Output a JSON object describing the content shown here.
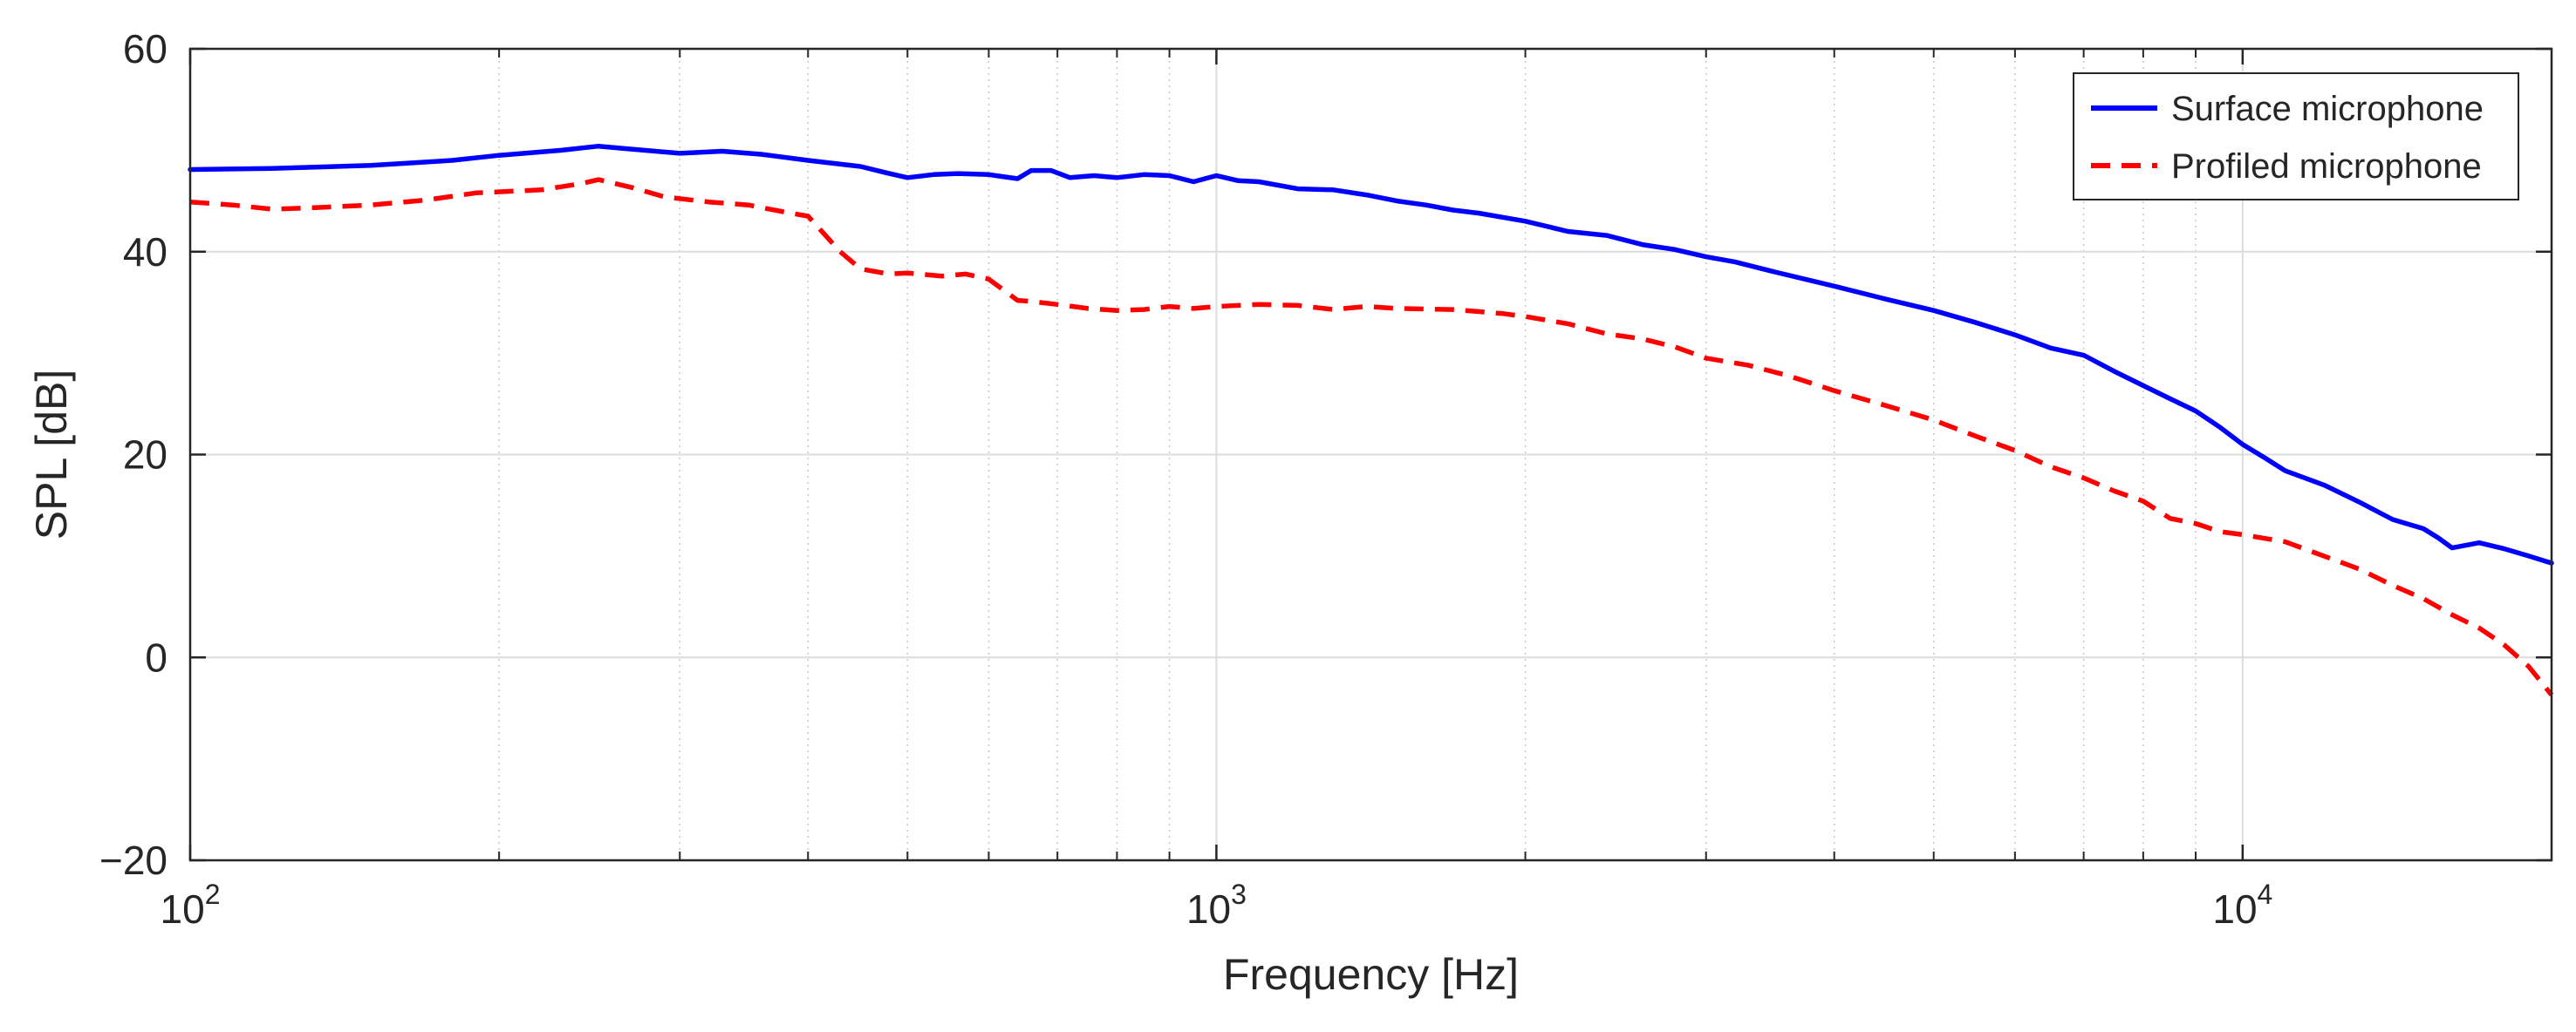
{
  "chart_data": {
    "type": "line",
    "title": "",
    "xlabel": "Frequency [Hz]",
    "ylabel": "SPL [dB]",
    "xscale": "log",
    "xlim": [
      100,
      20000
    ],
    "ylim": [
      -20,
      60
    ],
    "grid": true,
    "legend_position": "top-right",
    "x_ticks": [
      {
        "value": 100,
        "base": "10",
        "exp": "2"
      },
      {
        "value": 1000,
        "base": "10",
        "exp": "3"
      },
      {
        "value": 10000,
        "base": "10",
        "exp": "4"
      }
    ],
    "y_ticks": [
      {
        "value": -20,
        "label": "−20"
      },
      {
        "value": 0,
        "label": "0"
      },
      {
        "value": 20,
        "label": "20"
      },
      {
        "value": 40,
        "label": "40"
      },
      {
        "value": 60,
        "label": "60"
      }
    ],
    "series": [
      {
        "name": "Surface microphone",
        "color": "#0000ff",
        "dash": "solid",
        "points": [
          [
            100,
            48.1
          ],
          [
            120,
            48.2
          ],
          [
            150,
            48.5
          ],
          [
            180,
            49.0
          ],
          [
            200,
            49.5
          ],
          [
            230,
            50.0
          ],
          [
            250,
            50.4
          ],
          [
            270,
            50.1
          ],
          [
            300,
            49.7
          ],
          [
            330,
            49.9
          ],
          [
            360,
            49.6
          ],
          [
            400,
            49.0
          ],
          [
            450,
            48.4
          ],
          [
            480,
            47.7
          ],
          [
            500,
            47.3
          ],
          [
            530,
            47.6
          ],
          [
            560,
            47.7
          ],
          [
            600,
            47.6
          ],
          [
            640,
            47.2
          ],
          [
            660,
            48.0
          ],
          [
            690,
            48.0
          ],
          [
            720,
            47.3
          ],
          [
            760,
            47.5
          ],
          [
            800,
            47.3
          ],
          [
            850,
            47.6
          ],
          [
            900,
            47.5
          ],
          [
            950,
            46.9
          ],
          [
            1000,
            47.5
          ],
          [
            1050,
            47.0
          ],
          [
            1100,
            46.9
          ],
          [
            1200,
            46.2
          ],
          [
            1300,
            46.1
          ],
          [
            1400,
            45.6
          ],
          [
            1500,
            45.0
          ],
          [
            1600,
            44.6
          ],
          [
            1700,
            44.1
          ],
          [
            1800,
            43.8
          ],
          [
            2000,
            43.0
          ],
          [
            2200,
            42.0
          ],
          [
            2400,
            41.6
          ],
          [
            2600,
            40.7
          ],
          [
            2800,
            40.2
          ],
          [
            3000,
            39.5
          ],
          [
            3200,
            39.0
          ],
          [
            3500,
            38.0
          ],
          [
            4000,
            36.6
          ],
          [
            4500,
            35.3
          ],
          [
            5000,
            34.2
          ],
          [
            5500,
            33.0
          ],
          [
            6000,
            31.8
          ],
          [
            6500,
            30.5
          ],
          [
            7000,
            29.8
          ],
          [
            7500,
            28.2
          ],
          [
            8000,
            26.8
          ],
          [
            8500,
            25.5
          ],
          [
            9000,
            24.3
          ],
          [
            9500,
            22.7
          ],
          [
            10000,
            21.0
          ],
          [
            10500,
            19.7
          ],
          [
            11000,
            18.4
          ],
          [
            12000,
            17.0
          ],
          [
            13000,
            15.3
          ],
          [
            14000,
            13.6
          ],
          [
            15000,
            12.7
          ],
          [
            15500,
            11.8
          ],
          [
            16000,
            10.8
          ],
          [
            17000,
            11.3
          ],
          [
            18000,
            10.7
          ],
          [
            19000,
            10.0
          ],
          [
            20000,
            9.3
          ]
        ]
      },
      {
        "name": "Profiled microphone",
        "color": "#ff0000",
        "dash": "dashed",
        "points": [
          [
            100,
            44.9
          ],
          [
            110,
            44.6
          ],
          [
            120,
            44.2
          ],
          [
            130,
            44.3
          ],
          [
            150,
            44.6
          ],
          [
            170,
            45.1
          ],
          [
            190,
            45.8
          ],
          [
            220,
            46.1
          ],
          [
            240,
            46.7
          ],
          [
            250,
            47.1
          ],
          [
            270,
            46.3
          ],
          [
            290,
            45.4
          ],
          [
            320,
            44.9
          ],
          [
            350,
            44.6
          ],
          [
            380,
            43.9
          ],
          [
            400,
            43.5
          ],
          [
            430,
            40.0
          ],
          [
            450,
            38.3
          ],
          [
            480,
            37.8
          ],
          [
            500,
            37.9
          ],
          [
            540,
            37.6
          ],
          [
            570,
            37.8
          ],
          [
            600,
            37.3
          ],
          [
            640,
            35.2
          ],
          [
            660,
            35.1
          ],
          [
            700,
            34.8
          ],
          [
            750,
            34.4
          ],
          [
            800,
            34.2
          ],
          [
            850,
            34.3
          ],
          [
            900,
            34.6
          ],
          [
            950,
            34.4
          ],
          [
            1000,
            34.6
          ],
          [
            1100,
            34.8
          ],
          [
            1200,
            34.7
          ],
          [
            1300,
            34.3
          ],
          [
            1400,
            34.6
          ],
          [
            1500,
            34.4
          ],
          [
            1700,
            34.3
          ],
          [
            1900,
            33.9
          ],
          [
            2000,
            33.6
          ],
          [
            2200,
            32.9
          ],
          [
            2400,
            31.9
          ],
          [
            2600,
            31.4
          ],
          [
            2800,
            30.6
          ],
          [
            3000,
            29.5
          ],
          [
            3300,
            28.8
          ],
          [
            3600,
            27.8
          ],
          [
            4000,
            26.3
          ],
          [
            4500,
            24.8
          ],
          [
            5000,
            23.4
          ],
          [
            5500,
            21.8
          ],
          [
            6000,
            20.4
          ],
          [
            6500,
            18.8
          ],
          [
            7000,
            17.7
          ],
          [
            7500,
            16.4
          ],
          [
            8000,
            15.4
          ],
          [
            8500,
            13.7
          ],
          [
            9000,
            13.2
          ],
          [
            9500,
            12.4
          ],
          [
            10000,
            12.1
          ],
          [
            11000,
            11.4
          ],
          [
            12000,
            10.0
          ],
          [
            13000,
            8.7
          ],
          [
            14000,
            7.1
          ],
          [
            15000,
            5.8
          ],
          [
            16000,
            4.2
          ],
          [
            17000,
            2.9
          ],
          [
            18000,
            1.2
          ],
          [
            19000,
            -0.9
          ],
          [
            20000,
            -3.7
          ]
        ]
      }
    ]
  }
}
